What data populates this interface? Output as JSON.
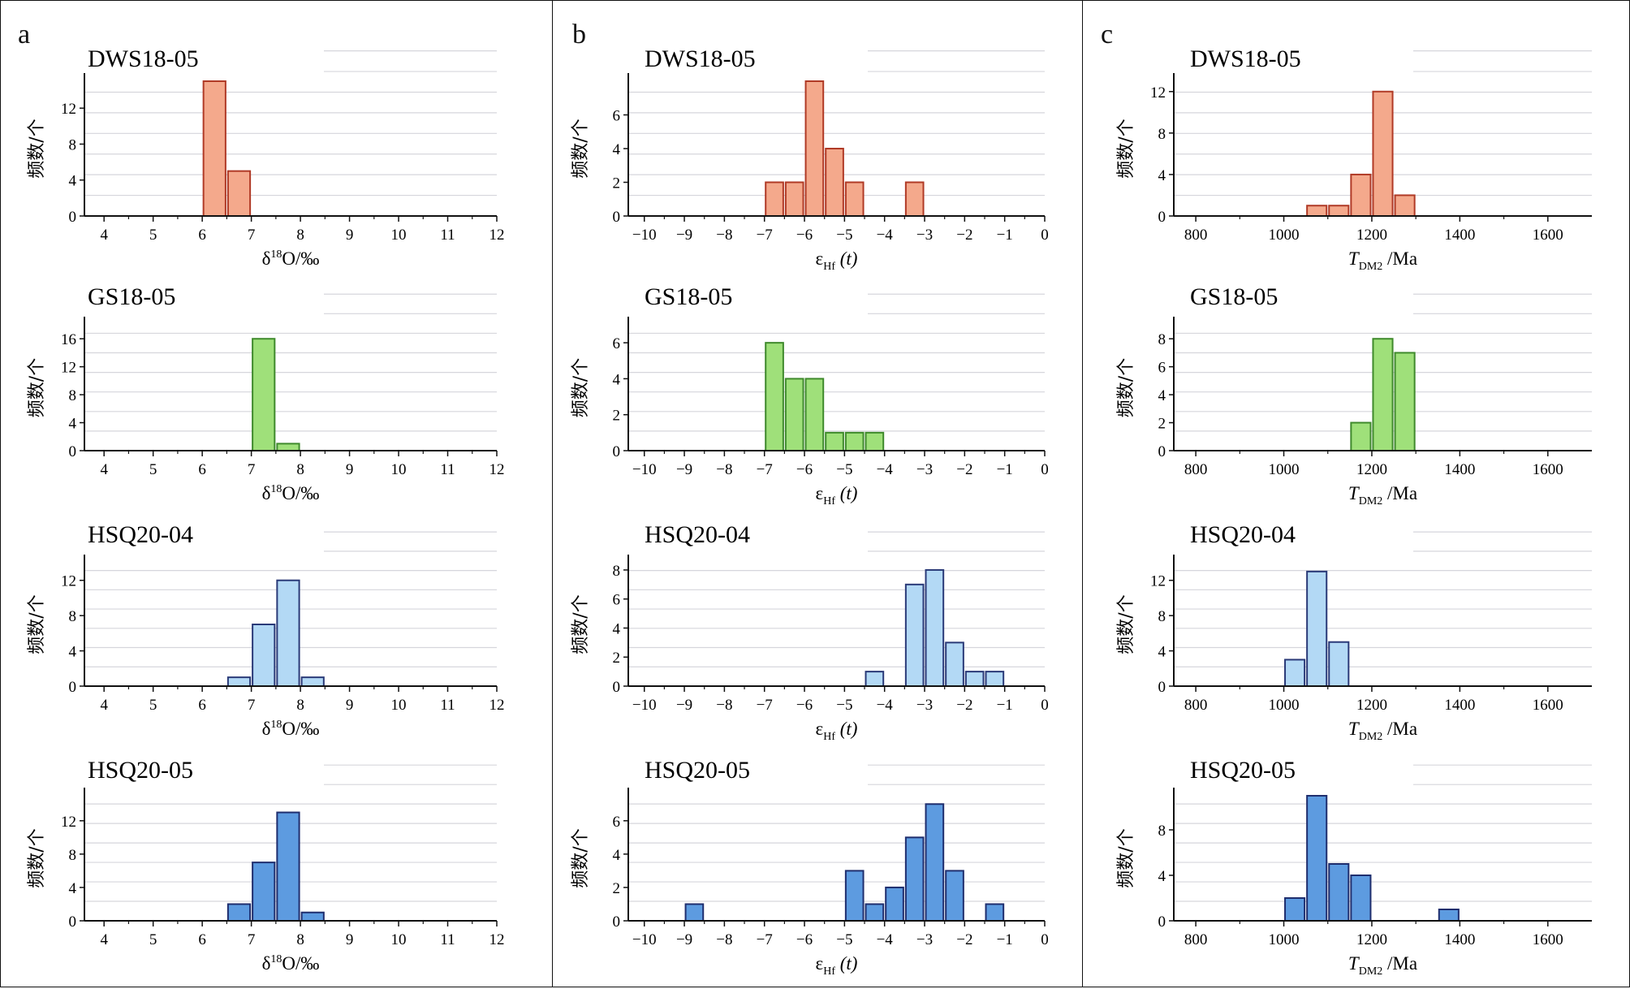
{
  "panels": [
    {
      "letter": "a",
      "xlabel_main": "δ",
      "xlabel_sup": "18",
      "xlabel_rest": "O/‰"
    },
    {
      "letter": "b",
      "xlabel_main": "ε",
      "xlabel_sub": "Hf",
      "xlabel_rest": " (t)"
    },
    {
      "letter": "c",
      "xlabel_main": "T",
      "xlabel_sub": "DM2",
      "xlabel_rest": " /Ma"
    }
  ],
  "ylabel": "频数/个",
  "colors": {
    "DWS18-05": "#f4a98c",
    "GS18-05": "#9fe07a",
    "HSQ20-04": "#b3d9f5",
    "HSQ20-05": "#5d9be0",
    "edge_DWS18-05": "#b03a26",
    "edge_GS18-05": "#3f8a2c",
    "edge_HSQ20-04": "#2a3a78",
    "edge_HSQ20-05": "#1f2e6e"
  },
  "chart_data": [
    {
      "panel": "a",
      "title": "DWS18-05",
      "type": "bar",
      "xlim": [
        3.6,
        12
      ],
      "ylim": [
        0,
        15
      ],
      "xticks": [
        4,
        5,
        6,
        7,
        8,
        9,
        10,
        11,
        12
      ],
      "yticks": [
        0,
        4,
        8,
        12
      ],
      "bin_width": 0.5,
      "bins": [
        6.25,
        6.75
      ],
      "values": [
        15,
        5
      ]
    },
    {
      "panel": "a",
      "title": "GS18-05",
      "type": "bar",
      "xlim": [
        3.6,
        12
      ],
      "ylim": [
        0,
        18
      ],
      "xticks": [
        4,
        5,
        6,
        7,
        8,
        9,
        10,
        11,
        12
      ],
      "yticks": [
        0,
        4,
        8,
        12,
        16
      ],
      "bin_width": 0.5,
      "bins": [
        7.25,
        7.75
      ],
      "values": [
        16,
        1
      ]
    },
    {
      "panel": "a",
      "title": "HSQ20-04",
      "type": "bar",
      "xlim": [
        3.6,
        12
      ],
      "ylim": [
        0,
        14
      ],
      "xticks": [
        4,
        5,
        6,
        7,
        8,
        9,
        10,
        11,
        12
      ],
      "yticks": [
        0,
        4,
        8,
        12
      ],
      "bin_width": 0.5,
      "bins": [
        6.75,
        7.25,
        7.75,
        8.25
      ],
      "values": [
        1,
        7,
        12,
        1
      ]
    },
    {
      "panel": "a",
      "title": "HSQ20-05",
      "type": "bar",
      "xlim": [
        3.6,
        12
      ],
      "ylim": [
        0,
        15
      ],
      "xticks": [
        4,
        5,
        6,
        7,
        8,
        9,
        10,
        11,
        12
      ],
      "yticks": [
        0,
        4,
        8,
        12
      ],
      "bin_width": 0.5,
      "bins": [
        6.75,
        7.25,
        7.75,
        8.25
      ],
      "values": [
        2,
        7,
        13,
        1
      ]
    },
    {
      "panel": "b",
      "title": "DWS18-05",
      "type": "bar",
      "xlim": [
        -10.4,
        0
      ],
      "ylim": [
        0,
        8
      ],
      "xticks": [
        -10,
        -9,
        -8,
        -7,
        -6,
        -5,
        -4,
        -3,
        -2,
        -1,
        0
      ],
      "yticks": [
        0,
        2,
        4,
        6
      ],
      "bin_width": 0.5,
      "bins": [
        -6.75,
        -6.25,
        -5.75,
        -5.25,
        -4.75,
        -3.25
      ],
      "values": [
        2,
        2,
        8,
        4,
        2,
        2
      ]
    },
    {
      "panel": "b",
      "title": "GS18-05",
      "type": "bar",
      "xlim": [
        -10.4,
        0
      ],
      "ylim": [
        0,
        7
      ],
      "xticks": [
        -10,
        -9,
        -8,
        -7,
        -6,
        -5,
        -4,
        -3,
        -2,
        -1,
        0
      ],
      "yticks": [
        0,
        2,
        4,
        6
      ],
      "bin_width": 0.5,
      "bins": [
        -6.75,
        -6.25,
        -5.75,
        -5.25,
        -4.75,
        -4.25
      ],
      "values": [
        6,
        4,
        4,
        1,
        1,
        1
      ]
    },
    {
      "panel": "b",
      "title": "HSQ20-04",
      "type": "bar",
      "xlim": [
        -10.4,
        0
      ],
      "ylim": [
        0,
        8.5
      ],
      "xticks": [
        -10,
        -9,
        -8,
        -7,
        -6,
        -5,
        -4,
        -3,
        -2,
        -1,
        0
      ],
      "yticks": [
        0,
        2,
        4,
        6,
        8
      ],
      "bin_width": 0.5,
      "bins": [
        -4.25,
        -3.25,
        -2.75,
        -2.25,
        -1.75,
        -1.25
      ],
      "values": [
        1,
        7,
        8,
        3,
        1,
        1
      ]
    },
    {
      "panel": "b",
      "title": "HSQ20-05",
      "type": "bar",
      "xlim": [
        -10.4,
        0
      ],
      "ylim": [
        0,
        7.5
      ],
      "xticks": [
        -10,
        -9,
        -8,
        -7,
        -6,
        -5,
        -4,
        -3,
        -2,
        -1,
        0
      ],
      "yticks": [
        0,
        2,
        4,
        6
      ],
      "bin_width": 0.5,
      "bins": [
        -8.75,
        -4.75,
        -4.25,
        -3.75,
        -3.25,
        -2.75,
        -2.25,
        -1.25
      ],
      "values": [
        1,
        3,
        1,
        2,
        5,
        7,
        3,
        1
      ]
    },
    {
      "panel": "c",
      "title": "DWS18-05",
      "type": "bar",
      "xlim": [
        750,
        1700
      ],
      "ylim": [
        0,
        13
      ],
      "xticks": [
        800,
        1000,
        1200,
        1400,
        1600
      ],
      "yticks": [
        0,
        4,
        8,
        12
      ],
      "bin_width": 50,
      "bins": [
        1075,
        1125,
        1175,
        1225,
        1275
      ],
      "values": [
        1,
        1,
        4,
        12,
        2
      ]
    },
    {
      "panel": "c",
      "title": "GS18-05",
      "type": "bar",
      "xlim": [
        750,
        1700
      ],
      "ylim": [
        0,
        9
      ],
      "xticks": [
        800,
        1000,
        1200,
        1400,
        1600
      ],
      "yticks": [
        0,
        2,
        4,
        6,
        8
      ],
      "bin_width": 50,
      "bins": [
        1175,
        1225,
        1275
      ],
      "values": [
        2,
        8,
        7
      ]
    },
    {
      "panel": "c",
      "title": "HSQ20-04",
      "type": "bar",
      "xlim": [
        750,
        1700
      ],
      "ylim": [
        0,
        14
      ],
      "xticks": [
        800,
        1000,
        1200,
        1400,
        1600
      ],
      "yticks": [
        0,
        4,
        8,
        12
      ],
      "bin_width": 50,
      "bins": [
        1025,
        1075,
        1125
      ],
      "values": [
        3,
        13,
        5
      ]
    },
    {
      "panel": "c",
      "title": "HSQ20-05",
      "type": "bar",
      "xlim": [
        750,
        1700
      ],
      "ylim": [
        0,
        11
      ],
      "xticks": [
        800,
        1000,
        1200,
        1400,
        1600
      ],
      "yticks": [
        0,
        4,
        8
      ],
      "bin_width": 50,
      "bins": [
        1025,
        1075,
        1125,
        1175,
        1375
      ],
      "values": [
        2,
        11,
        5,
        4,
        1
      ]
    }
  ]
}
